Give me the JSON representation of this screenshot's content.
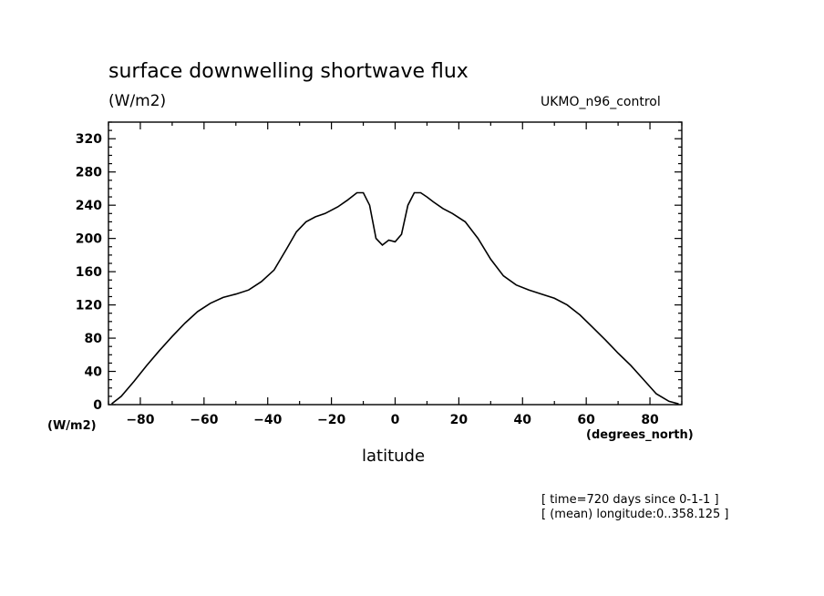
{
  "title": "surface downwelling shortwave flux",
  "units": "(W/m2)",
  "model": "UKMO_n96_control",
  "y_axis_unit_label": "(W/m2)",
  "x_axis_unit_label": "(degrees_north)",
  "xlabel": "latitude",
  "footnotes": [
    "[ time=720 days since 0-1-1 ]",
    "[ (mean) longitude:0..358.125 ]"
  ],
  "line_color": "#000000",
  "chart_data": {
    "type": "line",
    "title": "surface downwelling shortwave flux",
    "xlabel": "latitude",
    "ylabel": "(W/m2)",
    "xlim": [
      -90,
      90
    ],
    "ylim": [
      0,
      340
    ],
    "xticks": [
      -80,
      -60,
      -40,
      -20,
      0,
      20,
      40,
      60,
      80
    ],
    "yticks": [
      0,
      40,
      80,
      120,
      160,
      200,
      240,
      280,
      320
    ],
    "grid": false,
    "series": [
      {
        "x": [
          -89,
          -86,
          -82,
          -78,
          -74,
          -70,
          -66,
          -62,
          -58,
          -54,
          -50,
          -46,
          -42,
          -38,
          -34,
          -31,
          -28,
          -25,
          -22,
          -18,
          -15,
          -12,
          -10,
          -8,
          -6,
          -4,
          -2,
          0,
          2,
          4,
          6,
          8,
          10,
          12,
          15,
          18,
          22,
          26,
          30,
          34,
          38,
          42,
          46,
          50,
          54,
          58,
          62,
          66,
          70,
          74,
          78,
          82,
          86,
          89
        ],
        "y": [
          1,
          10,
          28,
          47,
          65,
          82,
          98,
          112,
          122,
          129,
          133,
          138,
          148,
          162,
          188,
          208,
          220,
          226,
          230,
          238,
          246,
          255,
          255,
          240,
          200,
          192,
          198,
          196,
          205,
          240,
          255,
          255,
          250,
          244,
          236,
          230,
          220,
          200,
          175,
          155,
          144,
          138,
          133,
          128,
          120,
          108,
          93,
          78,
          62,
          47,
          30,
          13,
          4,
          1
        ]
      }
    ]
  }
}
